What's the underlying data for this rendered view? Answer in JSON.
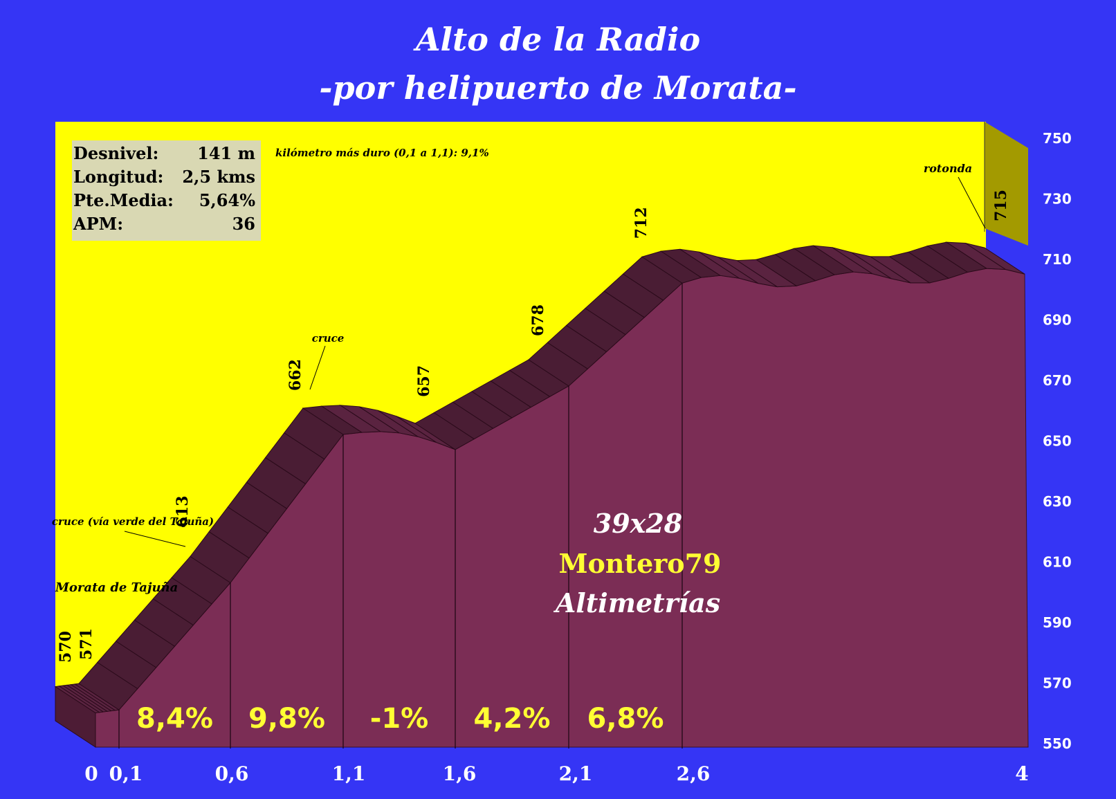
{
  "title": "Alto de la Radio",
  "subtitle": "-por helipuerto de Morata-",
  "stats": {
    "rows": [
      {
        "label": "Desnivel:",
        "value": "141 m"
      },
      {
        "label": "Longitud:",
        "value": "2,5 kms"
      },
      {
        "label": "Pte.Media:",
        "value": "5,64%"
      },
      {
        "label": "APM:",
        "value": "36"
      }
    ]
  },
  "hardest_km": "kilómetro más duro (0,1 a 1,1):  9,1%",
  "watermark": {
    "line1": "39x28",
    "line2": "Montero79",
    "line3": "Altimetrías"
  },
  "colors": {
    "background": "#3535f5",
    "sky": "#ffff00",
    "profile_front": "#7b2d55",
    "profile_top": "#4a1d34",
    "right_wall": "#a39a00",
    "slope_text": "#ffff33",
    "watermark_name": "#ffff33"
  },
  "chart_data": {
    "type": "area",
    "title": "Alto de la Radio",
    "subtitle": "-por helipuerto de Morata-",
    "xlabel": "",
    "ylabel": "",
    "ylim": [
      550,
      750
    ],
    "y_ticks": [
      "750",
      "730",
      "710",
      "690",
      "670",
      "650",
      "630",
      "610",
      "590",
      "570",
      "550"
    ],
    "x_ticks": [
      "0",
      "0,1",
      "0,6",
      "1,1",
      "1,6",
      "2,1",
      "2,6",
      "4"
    ],
    "profile": [
      {
        "d": 0,
        "alt": 570
      },
      {
        "d": 0.1,
        "alt": 571
      },
      {
        "d": 0.6,
        "alt": 613
      },
      {
        "d": 1.1,
        "alt": 662
      },
      {
        "d": 1.6,
        "alt": 657
      },
      {
        "d": 2.1,
        "alt": 678
      },
      {
        "d": 2.6,
        "alt": 712
      },
      {
        "d": 4,
        "alt": 715
      }
    ],
    "altitude_labels": [
      "570",
      "571",
      "613",
      "662",
      "657",
      "678",
      "712",
      "715"
    ],
    "segment_slopes": [
      "8,4%",
      "9,8%",
      "-1%",
      "4,2%",
      "6,8%"
    ],
    "annotations": [
      "Morata de Tajuña",
      "cruce (vía verde del Tajuña)",
      "cruce",
      "rotonda"
    ],
    "grid": false
  }
}
